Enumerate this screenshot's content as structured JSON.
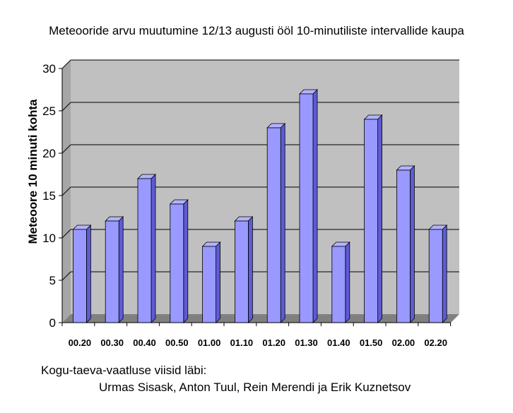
{
  "chart_data": {
    "type": "bar",
    "title": "Meteooride arvu muutumine 12/13 augusti ööl 10-minutiliste intervallide kaupa",
    "ylabel": "Meteoore  10 minuti kohta",
    "xlabel": "",
    "categories": [
      "00.20",
      "00.30",
      "00.40",
      "00.50",
      "01.00",
      "01.10",
      "01.20",
      "01.30",
      "01.40",
      "01.50",
      "02.00",
      "02.20"
    ],
    "values": [
      11,
      12,
      17,
      14,
      9,
      12,
      23,
      27,
      9,
      24,
      18,
      11
    ],
    "ylim": [
      0,
      30
    ],
    "yticks": [
      0,
      5,
      10,
      15,
      20,
      25,
      30
    ],
    "grid": true,
    "colors": {
      "bar_front": "#9999ff",
      "bar_side": "#5c5cd6",
      "bar_top": "#b3b3ff",
      "plot_bg": "#c0c0c0",
      "floor": "#808080"
    }
  },
  "footer": {
    "line1": "Kogu-taeva-vaatluse viisid läbi:",
    "line2": "Urmas Sisask, Anton Tuul, Rein Merendi ja Erik Kuznetsov"
  }
}
